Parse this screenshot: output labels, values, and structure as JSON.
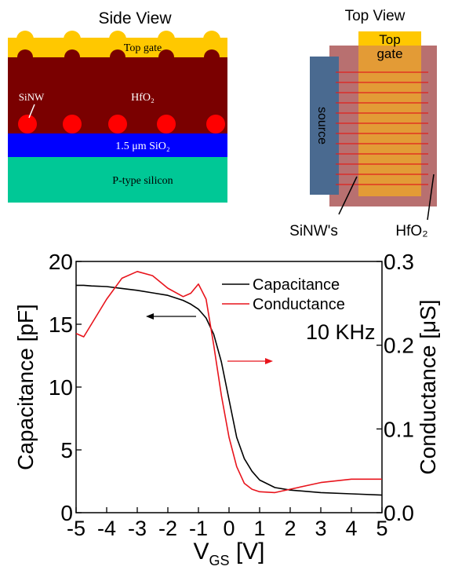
{
  "diagram": {
    "side_title": "Side View",
    "top_gate": "Top gate",
    "sinw": "SiNW",
    "hfo2": "HfO₂",
    "sio2": "1.5 μm SiO₂",
    "silicon": "P-type silicon",
    "top_title": "Top View",
    "top_gate_1": "Top",
    "top_gate_2": "gate",
    "source": "source",
    "sinws": "SiNW's",
    "hfo2_top": "HfO₂"
  },
  "chart_data": {
    "type": "line",
    "x_label": {
      "text": "V",
      "subscript": "GS",
      "suffix": " [V]"
    },
    "y_label": "Capacitance [pF]",
    "y2_label": "Conductance [μS]",
    "annotation": "10 KHz",
    "x": [
      -5,
      -4.75,
      -4.5,
      -4,
      -3.5,
      -3,
      -2.5,
      -2,
      -1.5,
      -1.25,
      -1,
      -0.75,
      -0.5,
      -0.25,
      0,
      0.25,
      0.5,
      0.75,
      1,
      1.5,
      2,
      3,
      4,
      5
    ],
    "series": [
      {
        "name": "Capacitance",
        "color": "#000000",
        "values": [
          18.1,
          18.1,
          18.05,
          18.0,
          17.85,
          17.7,
          17.5,
          17.3,
          16.9,
          16.6,
          16.2,
          15.5,
          14.2,
          12.0,
          9.0,
          6.0,
          4.3,
          3.3,
          2.6,
          2.0,
          1.8,
          1.6,
          1.5,
          1.4
        ]
      },
      {
        "name": "Conductance",
        "color": "#e8141c",
        "axis": "y2",
        "values": [
          0.214,
          0.21,
          0.225,
          0.255,
          0.28,
          0.288,
          0.283,
          0.268,
          0.258,
          0.262,
          0.273,
          0.255,
          0.2,
          0.14,
          0.09,
          0.055,
          0.035,
          0.028,
          0.025,
          0.024,
          0.028,
          0.036,
          0.04,
          0.04
        ]
      }
    ],
    "xlim": [
      -5,
      5
    ],
    "xticks": [
      -5,
      -4,
      -3,
      -2,
      -1,
      0,
      1,
      2,
      3,
      4,
      5
    ],
    "ylim": [
      0,
      20
    ],
    "yticks": [
      0,
      5,
      10,
      15,
      20
    ],
    "y2lim": [
      0,
      0.3
    ],
    "y2ticks": [
      {
        "value": 0,
        "label": "0.0"
      },
      0.1,
      0.2,
      0.3
    ]
  }
}
